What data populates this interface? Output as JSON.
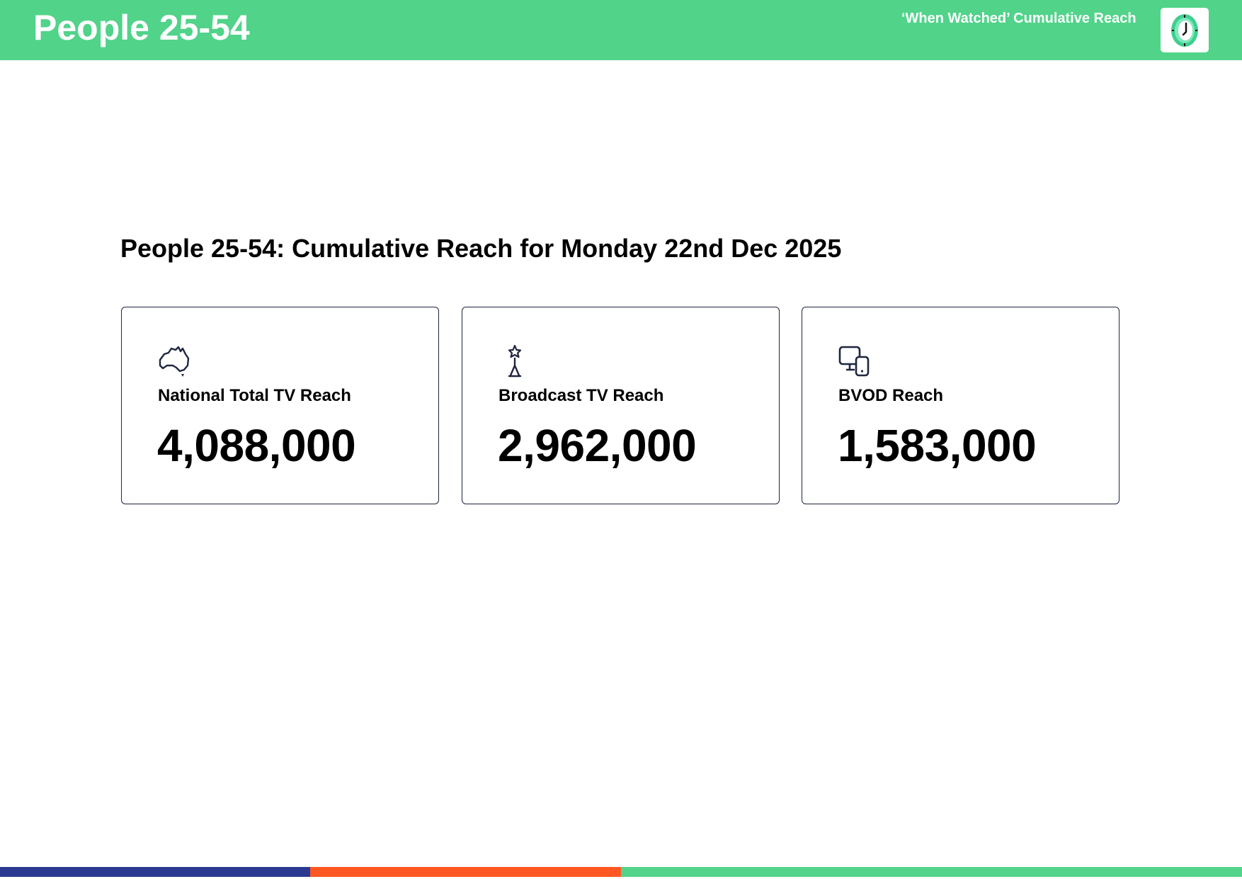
{
  "header": {
    "title": "People 25-54",
    "subtitle": "‘When Watched’ Cumulative Reach",
    "icon": "clock-icon",
    "background_color": "#51d38a"
  },
  "main": {
    "heading": "People 25-54: Cumulative Reach for Monday 22nd Dec 2025",
    "cards": [
      {
        "icon": "australia-map-icon",
        "label": "National Total TV Reach",
        "value": "4,088,000"
      },
      {
        "icon": "broadcast-tower-icon",
        "label": "Broadcast TV Reach",
        "value": "2,962,000"
      },
      {
        "icon": "devices-icon",
        "label": "BVOD Reach",
        "value": "1,583,000"
      }
    ]
  },
  "footer": {
    "colors": [
      "#2b3990",
      "#ff5722",
      "#51d38a"
    ]
  }
}
